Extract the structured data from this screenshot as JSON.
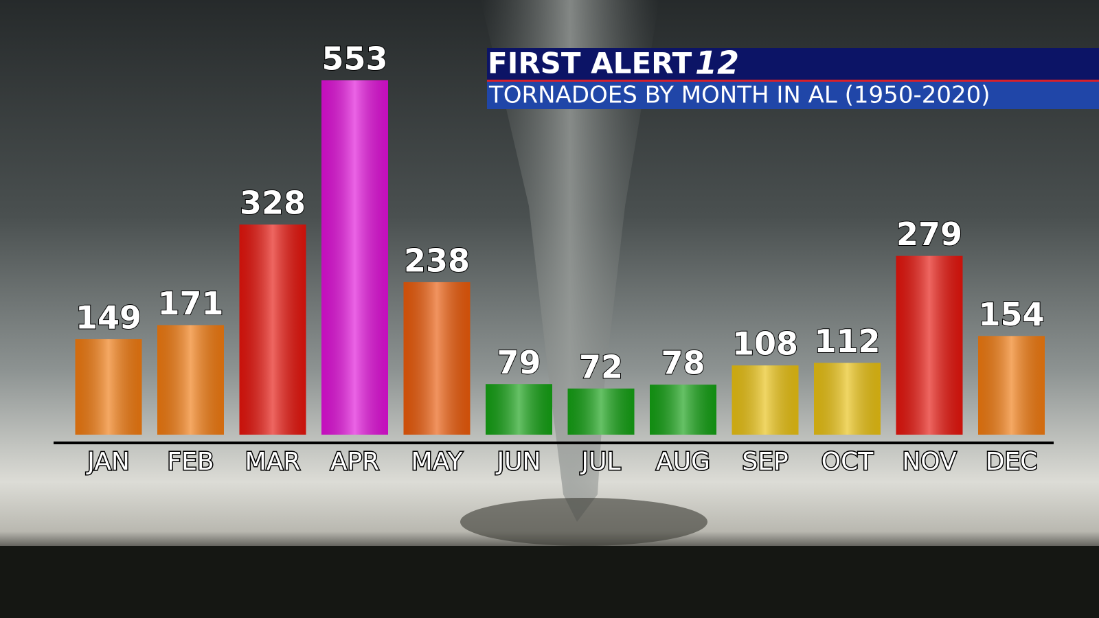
{
  "chart_data": {
    "type": "bar",
    "logo_text": "FIRST ALERT",
    "logo_number": "12",
    "title": "TORNADOES BY MONTH IN AL (1950-2020)",
    "categories": [
      "JAN",
      "FEB",
      "MAR",
      "APR",
      "MAY",
      "JUN",
      "JUL",
      "AUG",
      "SEP",
      "OCT",
      "NOV",
      "DEC"
    ],
    "values": [
      149,
      171,
      328,
      553,
      238,
      79,
      72,
      78,
      108,
      112,
      279,
      154
    ],
    "colors": [
      "#f07a10",
      "#f07a10",
      "#e5140c",
      "#e010d8",
      "#ea5a0a",
      "#14a014",
      "#14a014",
      "#14a014",
      "#e8c012",
      "#e8c012",
      "#e5140c",
      "#f07a10"
    ]
  }
}
